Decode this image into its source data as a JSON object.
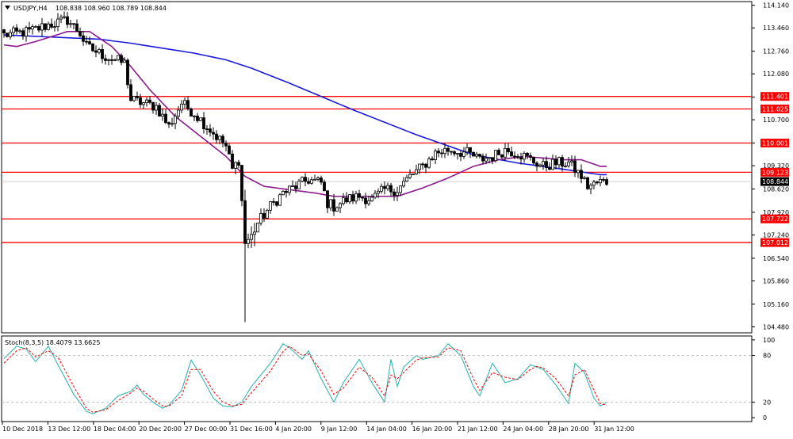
{
  "header": {
    "symbol_label": "USDJPY,H4",
    "ohlc": "108.838 108.960 108.789 108.844"
  },
  "indicator": {
    "label": "Stoch(8,3,5) 18.4079 13.6625"
  },
  "colors": {
    "background": "#ffffff",
    "bull_body": "#ffffff",
    "bear_body": "#000000",
    "candle_outline": "#000000",
    "ma_fast": "#8B1A8B",
    "ma_slow": "#1a1adb",
    "level_line": "#ff0000",
    "level_label_bg": "#ff0000",
    "level_label_text": "#ffffff",
    "current_price_bg": "#000000",
    "stoch_main": "#20b2aa",
    "stoch_signal": "#ff0000",
    "stoch_levels": "#c0c0c0"
  },
  "chart_data": [
    {
      "type": "candlestick",
      "symbol": "USDJPY",
      "timeframe": "H4",
      "ylim": [
        104.3,
        114.25
      ],
      "y_ticks": [
        "114.140",
        "113.460",
        "112.760",
        "112.080",
        "111.380",
        "110.700",
        "110.000",
        "109.320",
        "108.620",
        "107.920",
        "107.240",
        "106.540",
        "105.860",
        "105.160",
        "104.480"
      ],
      "x_ticks": [
        "10 Dec 2018",
        "13 Dec 12:00",
        "18 Dec 04:00",
        "20 Dec 20:00",
        "27 Dec 00:00",
        "31 Dec 16:00",
        "4 Jan 20:00",
        "9 Jan 12:00",
        "14 Jan 04:00",
        "16 Jan 20:00",
        "21 Jan 12:00",
        "24 Jan 04:00",
        "28 Jan 20:00",
        "31 Jan 12:00"
      ],
      "horizontal_levels": [
        "111.401",
        "111.025",
        "110.001",
        "109.123",
        "107.722",
        "107.012"
      ],
      "current_price": "108.844",
      "close_anchors": [
        [
          0,
          113.25
        ],
        [
          8,
          113.35
        ],
        [
          14,
          113.55
        ],
        [
          20,
          113.7
        ],
        [
          24,
          113.3
        ],
        [
          26,
          112.9
        ],
        [
          32,
          112.6
        ],
        [
          38,
          112.4
        ],
        [
          40,
          111.3
        ],
        [
          44,
          111.2
        ],
        [
          48,
          111.1
        ],
        [
          52,
          110.5
        ],
        [
          56,
          111.2
        ],
        [
          60,
          110.9
        ],
        [
          66,
          110.3
        ],
        [
          70,
          109.9
        ],
        [
          72,
          109.2
        ],
        [
          74,
          109.5
        ],
        [
          76,
          107.0
        ],
        [
          78,
          107.2
        ],
        [
          80,
          107.6
        ],
        [
          84,
          108.1
        ],
        [
          88,
          108.5
        ],
        [
          92,
          108.7
        ],
        [
          96,
          108.9
        ],
        [
          100,
          108.8
        ],
        [
          102,
          108.2
        ],
        [
          104,
          108.1
        ],
        [
          108,
          108.3
        ],
        [
          112,
          108.4
        ],
        [
          116,
          108.3
        ],
        [
          120,
          108.6
        ],
        [
          124,
          108.6
        ],
        [
          128,
          109.0
        ],
        [
          132,
          109.3
        ],
        [
          136,
          109.7
        ],
        [
          140,
          109.8
        ],
        [
          146,
          109.7
        ],
        [
          150,
          109.5
        ],
        [
          154,
          109.6
        ],
        [
          158,
          109.8
        ],
        [
          162,
          109.7
        ],
        [
          166,
          109.5
        ],
        [
          170,
          109.3
        ],
        [
          174,
          109.4
        ],
        [
          178,
          109.4
        ],
        [
          182,
          109.0
        ],
        [
          184,
          108.7
        ],
        [
          186,
          108.75
        ],
        [
          188,
          108.84
        ]
      ],
      "wicks": [
        [
          76,
          104.62,
          108.6
        ],
        [
          78,
          106.85,
          107.5
        ],
        [
          79,
          106.9,
          107.6
        ]
      ],
      "ma_fast_anchors": [
        [
          0,
          112.95
        ],
        [
          4,
          112.9
        ],
        [
          10,
          113.05
        ],
        [
          20,
          113.35
        ],
        [
          27,
          113.35
        ],
        [
          34,
          112.9
        ],
        [
          40,
          112.3
        ],
        [
          46,
          111.6
        ],
        [
          54,
          110.8
        ],
        [
          62,
          110.2
        ],
        [
          70,
          109.6
        ],
        [
          76,
          109.0
        ],
        [
          82,
          108.7
        ],
        [
          90,
          108.6
        ],
        [
          98,
          108.5
        ],
        [
          104,
          108.4
        ],
        [
          112,
          108.4
        ],
        [
          124,
          108.4
        ],
        [
          132,
          108.65
        ],
        [
          140,
          108.95
        ],
        [
          148,
          109.3
        ],
        [
          156,
          109.5
        ],
        [
          164,
          109.6
        ],
        [
          170,
          109.55
        ],
        [
          176,
          109.5
        ],
        [
          182,
          109.5
        ],
        [
          188,
          109.3
        ]
      ],
      "ma_slow_anchors": [
        [
          0,
          113.25
        ],
        [
          30,
          113.12
        ],
        [
          40,
          113.0
        ],
        [
          60,
          112.7
        ],
        [
          70,
          112.5
        ],
        [
          78,
          112.25
        ],
        [
          90,
          111.8
        ],
        [
          110,
          111.0
        ],
        [
          130,
          110.25
        ],
        [
          148,
          109.65
        ],
        [
          162,
          109.4
        ],
        [
          176,
          109.22
        ],
        [
          188,
          109.05
        ]
      ]
    },
    {
      "type": "line",
      "title": "Stoch(8,3,5) 18.4079 13.6625",
      "ylim": [
        -5,
        105
      ],
      "y_ticks": [
        "100",
        "80",
        "20",
        "0"
      ],
      "levels": [
        80,
        20
      ],
      "main_anchors": [
        [
          0,
          76
        ],
        [
          4,
          92
        ],
        [
          7,
          88
        ],
        [
          10,
          72
        ],
        [
          14,
          92
        ],
        [
          17,
          68
        ],
        [
          22,
          30
        ],
        [
          26,
          8
        ],
        [
          28,
          5
        ],
        [
          32,
          12
        ],
        [
          36,
          28
        ],
        [
          40,
          34
        ],
        [
          42,
          42
        ],
        [
          44,
          30
        ],
        [
          47,
          20
        ],
        [
          50,
          12
        ],
        [
          52,
          16
        ],
        [
          56,
          35
        ],
        [
          59,
          74
        ],
        [
          62,
          55
        ],
        [
          66,
          25
        ],
        [
          69,
          15
        ],
        [
          72,
          14
        ],
        [
          75,
          20
        ],
        [
          78,
          40
        ],
        [
          84,
          70
        ],
        [
          88,
          95
        ],
        [
          90,
          90
        ],
        [
          94,
          75
        ],
        [
          96,
          86
        ],
        [
          100,
          50
        ],
        [
          104,
          20
        ],
        [
          107,
          45
        ],
        [
          112,
          75
        ],
        [
          116,
          45
        ],
        [
          120,
          20
        ],
        [
          122,
          75
        ],
        [
          124,
          40
        ],
        [
          126,
          65
        ],
        [
          130,
          80
        ],
        [
          132,
          75
        ],
        [
          137,
          80
        ],
        [
          140,
          95
        ],
        [
          144,
          80
        ],
        [
          148,
          40
        ],
        [
          150,
          28
        ],
        [
          154,
          70
        ],
        [
          158,
          45
        ],
        [
          162,
          50
        ],
        [
          166,
          68
        ],
        [
          168,
          65
        ],
        [
          170,
          62
        ],
        [
          174,
          42
        ],
        [
          178,
          18
        ],
        [
          180,
          70
        ],
        [
          183,
          58
        ],
        [
          186,
          25
        ],
        [
          188,
          15
        ],
        [
          190,
          20
        ]
      ],
      "signal_anchors": [
        [
          0,
          70
        ],
        [
          4,
          86
        ],
        [
          7,
          90
        ],
        [
          10,
          78
        ],
        [
          14,
          86
        ],
        [
          17,
          78
        ],
        [
          22,
          40
        ],
        [
          26,
          12
        ],
        [
          28,
          7
        ],
        [
          32,
          10
        ],
        [
          36,
          22
        ],
        [
          40,
          32
        ],
        [
          42,
          38
        ],
        [
          44,
          34
        ],
        [
          47,
          24
        ],
        [
          50,
          15
        ],
        [
          52,
          15
        ],
        [
          56,
          28
        ],
        [
          59,
          62
        ],
        [
          62,
          62
        ],
        [
          66,
          34
        ],
        [
          69,
          20
        ],
        [
          72,
          15
        ],
        [
          75,
          17
        ],
        [
          78,
          32
        ],
        [
          84,
          60
        ],
        [
          88,
          85
        ],
        [
          90,
          92
        ],
        [
          94,
          80
        ],
        [
          96,
          82
        ],
        [
          100,
          60
        ],
        [
          104,
          30
        ],
        [
          107,
          38
        ],
        [
          112,
          65
        ],
        [
          116,
          52
        ],
        [
          120,
          28
        ],
        [
          122,
          55
        ],
        [
          124,
          50
        ],
        [
          126,
          58
        ],
        [
          130,
          74
        ],
        [
          132,
          77
        ],
        [
          137,
          78
        ],
        [
          140,
          90
        ],
        [
          144,
          86
        ],
        [
          148,
          50
        ],
        [
          150,
          35
        ],
        [
          154,
          58
        ],
        [
          158,
          52
        ],
        [
          162,
          49
        ],
        [
          166,
          62
        ],
        [
          168,
          66
        ],
        [
          170,
          64
        ],
        [
          174,
          50
        ],
        [
          178,
          28
        ],
        [
          180,
          55
        ],
        [
          183,
          62
        ],
        [
          186,
          35
        ],
        [
          188,
          18
        ],
        [
          190,
          16
        ]
      ]
    }
  ]
}
